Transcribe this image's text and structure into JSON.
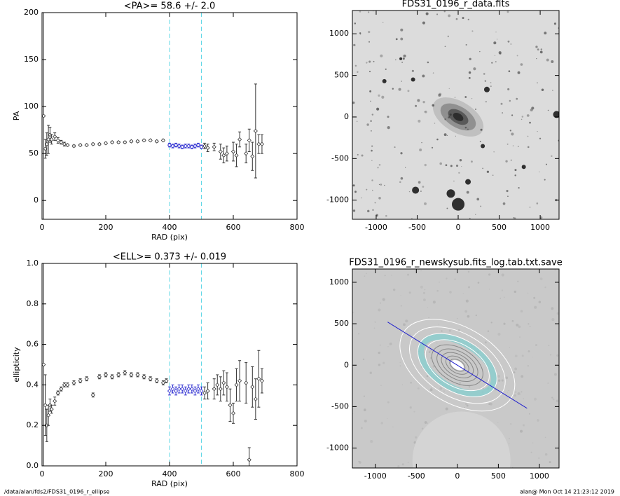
{
  "chart_data": [
    {
      "type": "errorscatter",
      "title": "<PA>=  58.6 +/-   2.0",
      "xlabel": "RAD (pix)",
      "ylabel": "PA",
      "xlim": [
        0,
        800
      ],
      "ylim": [
        -20,
        200
      ],
      "xticks": [
        0,
        200,
        400,
        600,
        800
      ],
      "yticks": [
        0,
        50,
        100,
        150,
        200
      ],
      "vlines": [
        400,
        500
      ],
      "vline_color": "#5fd7e6",
      "series": [
        {
          "color": "#333333",
          "x": [
            5,
            10,
            15,
            20,
            25,
            30,
            40,
            50,
            60,
            70,
            80,
            100,
            120,
            140,
            160,
            180,
            200,
            220,
            240,
            260,
            280,
            300,
            320,
            340,
            360,
            380
          ],
          "values": [
            90,
            55,
            60,
            65,
            70,
            65,
            68,
            64,
            62,
            60,
            59,
            58,
            59,
            59,
            60,
            60,
            61,
            62,
            62,
            62,
            63,
            63,
            64,
            64,
            63,
            64
          ],
          "errors": [
            110,
            10,
            12,
            15,
            8,
            5,
            4,
            3,
            2,
            2,
            1,
            1,
            1,
            1,
            1,
            1,
            1,
            1,
            1,
            1,
            1,
            1,
            1,
            1,
            1,
            1
          ]
        },
        {
          "color": "#2b2bd0",
          "x": [
            400,
            410,
            420,
            430,
            440,
            450,
            460,
            470,
            480,
            490,
            500
          ],
          "values": [
            59,
            58,
            59,
            58,
            57,
            58,
            58,
            57,
            58,
            59,
            57
          ],
          "errors": [
            2,
            2,
            2,
            2,
            2,
            2,
            2,
            2,
            2,
            2,
            2
          ]
        },
        {
          "color": "#333333",
          "x": [
            510,
            520,
            540,
            560,
            570,
            580,
            600,
            610,
            620,
            640,
            650,
            660,
            670,
            680,
            690
          ],
          "values": [
            58,
            56,
            57,
            52,
            48,
            50,
            52,
            48,
            65,
            50,
            64,
            47,
            74,
            60,
            60
          ],
          "errors": [
            3,
            4,
            4,
            8,
            8,
            8,
            10,
            12,
            8,
            10,
            12,
            15,
            50,
            10,
            10
          ]
        }
      ]
    },
    {
      "type": "errorscatter",
      "title": "<ELL>= 0.373 +/-  0.019",
      "xlabel": "RAD (pix)",
      "ylabel": "ellipticity",
      "xlim": [
        0,
        800
      ],
      "ylim": [
        0,
        1
      ],
      "xticks": [
        0,
        200,
        400,
        600,
        800
      ],
      "yticks": [
        {
          "value": 0,
          "label": "0.0"
        },
        {
          "value": 0.2,
          "label": "0.2"
        },
        {
          "value": 0.4,
          "label": "0.4"
        },
        {
          "value": 0.6,
          "label": "0.6"
        },
        {
          "value": 0.8,
          "label": "0.8"
        },
        {
          "value": 1,
          "label": "1.0"
        }
      ],
      "vlines": [
        400,
        500
      ],
      "vline_color": "#5fd7e6",
      "series": [
        {
          "color": "#333333",
          "x": [
            5,
            10,
            15,
            20,
            25,
            30,
            40,
            50,
            60,
            70,
            80,
            100,
            120,
            140,
            160,
            180,
            200,
            220,
            240,
            260,
            280,
            300,
            320,
            340,
            360,
            380,
            390
          ],
          "values": [
            0.5,
            0.3,
            0.2,
            0.25,
            0.3,
            0.28,
            0.32,
            0.36,
            0.38,
            0.4,
            0.4,
            0.41,
            0.42,
            0.43,
            0.35,
            0.44,
            0.45,
            0.44,
            0.45,
            0.46,
            0.45,
            0.45,
            0.44,
            0.43,
            0.42,
            0.41,
            0.42
          ],
          "errors": [
            0.5,
            0.15,
            0.08,
            0.05,
            0.03,
            0.02,
            0.02,
            0.01,
            0.01,
            0.01,
            0.01,
            0.01,
            0.01,
            0.01,
            0.01,
            0.01,
            0.01,
            0.01,
            0.01,
            0.01,
            0.01,
            0.01,
            0.01,
            0.01,
            0.01,
            0.01,
            0.01
          ]
        },
        {
          "color": "#2b2bd0",
          "x": [
            400,
            410,
            420,
            430,
            440,
            450,
            460,
            470,
            480,
            490,
            500
          ],
          "values": [
            0.37,
            0.38,
            0.37,
            0.38,
            0.38,
            0.37,
            0.38,
            0.38,
            0.37,
            0.38,
            0.37
          ],
          "errors": [
            0.02,
            0.02,
            0.02,
            0.02,
            0.02,
            0.02,
            0.02,
            0.02,
            0.02,
            0.02,
            0.02
          ]
        },
        {
          "color": "#333333",
          "x": [
            510,
            520,
            540,
            550,
            560,
            570,
            580,
            590,
            600,
            610,
            620,
            640,
            650,
            660,
            670,
            680,
            690
          ],
          "values": [
            0.36,
            0.37,
            0.38,
            0.4,
            0.38,
            0.41,
            0.39,
            0.3,
            0.26,
            0.4,
            0.42,
            0.41,
            0.03,
            0.39,
            0.33,
            0.43,
            0.42
          ],
          "errors": [
            0.03,
            0.04,
            0.05,
            0.05,
            0.06,
            0.06,
            0.07,
            0.08,
            0.05,
            0.08,
            0.1,
            0.1,
            0.06,
            0.1,
            0.1,
            0.14,
            0.06
          ]
        }
      ]
    },
    {
      "type": "image",
      "title": "FDS31_0196_r_data.fits",
      "xlim": [
        -1290,
        1230
      ],
      "ylim": [
        -1230,
        1280
      ],
      "xticks": [
        -1000,
        -500,
        0,
        500,
        1000
      ],
      "yticks": [
        -1000,
        -500,
        0,
        500,
        1000
      ]
    },
    {
      "type": "image-overlay",
      "title": "FDS31_0196_r_newskysub.fits_log.tab.txt.save",
      "xlim": [
        -1280,
        1240
      ],
      "ylim": [
        -1240,
        1160
      ],
      "xticks": [
        -1000,
        -500,
        0,
        500,
        1000
      ],
      "yticks": [
        -1000,
        -500,
        0,
        500,
        1000
      ],
      "overlay": {
        "color": "#2222cc",
        "x": [
          -850,
          850
        ],
        "y": [
          520,
          -520
        ]
      }
    }
  ],
  "footer": {
    "left": "/data/alan/fds2/FDS31_0196_r_ellipse",
    "right": "alan@  Mon Oct 14 21:23:12 2019"
  }
}
